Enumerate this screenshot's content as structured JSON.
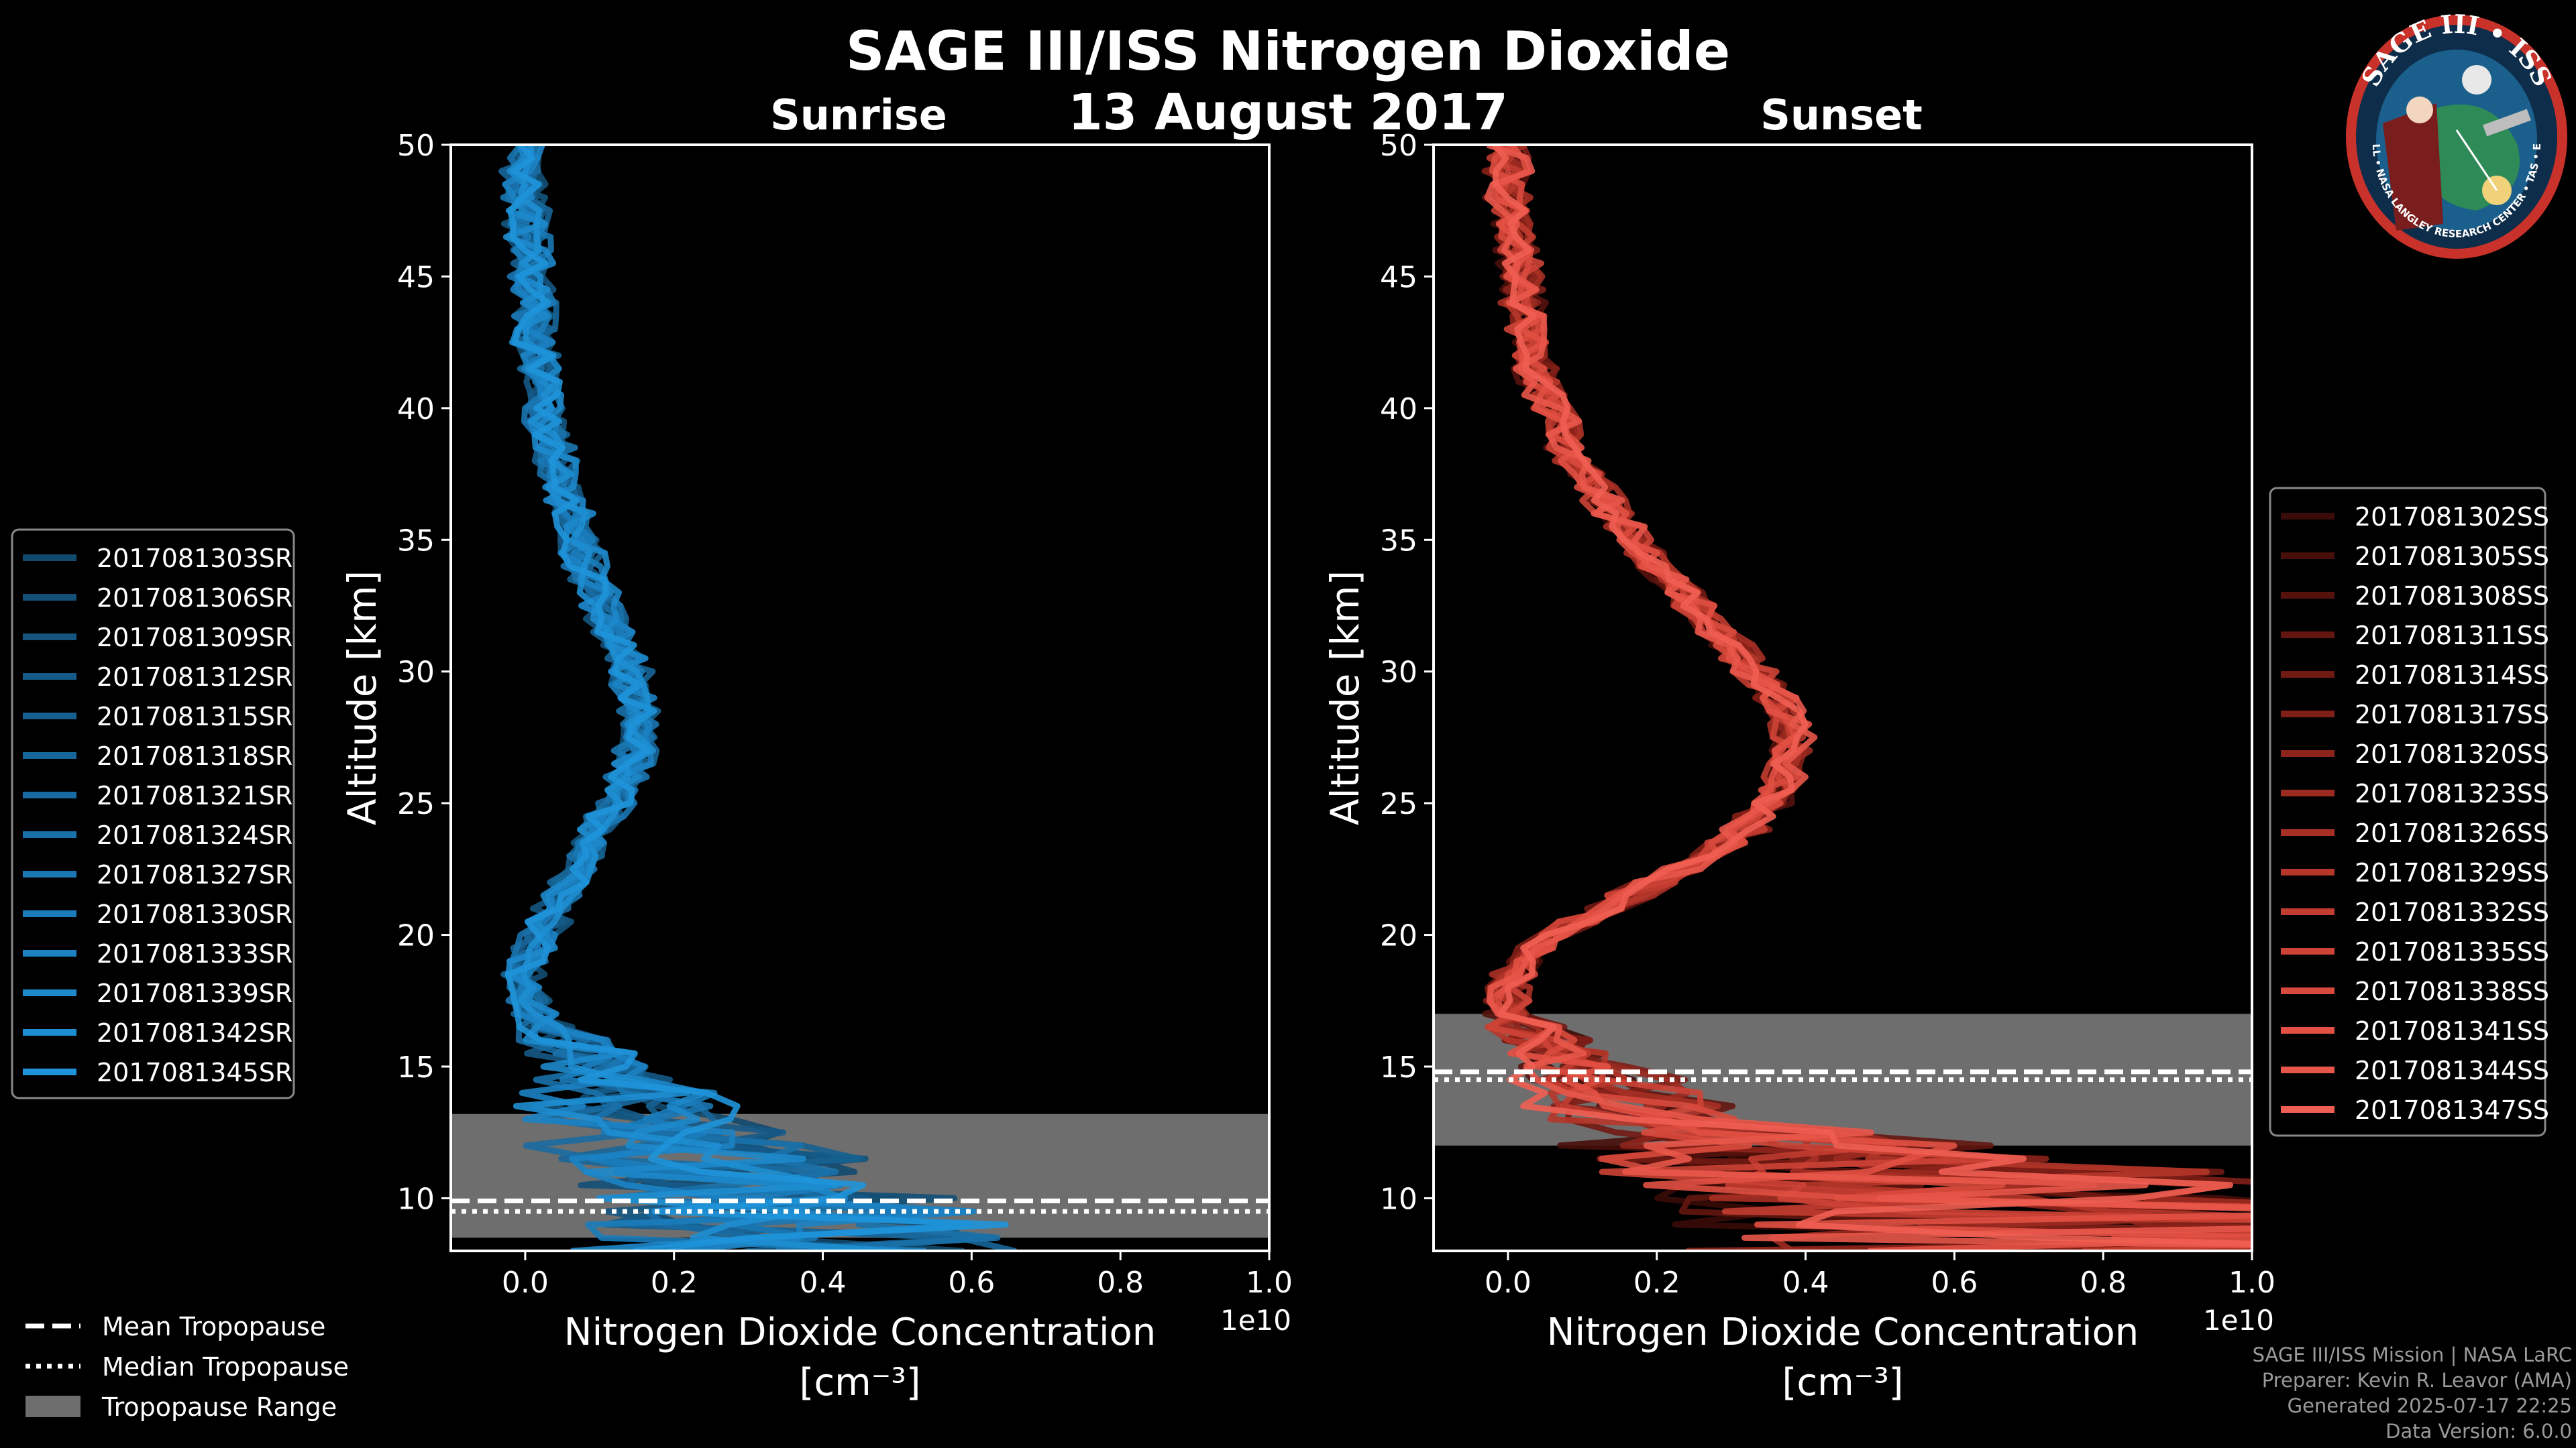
{
  "header": {
    "title": "SAGE III/ISS Nitrogen Dioxide",
    "date": "13 August 2017"
  },
  "chart_data": [
    {
      "type": "line",
      "panel": "Sunrise",
      "title": "Sunrise",
      "xlabel_line1": "Nitrogen Dioxide Concentration",
      "xlabel_line2": "[cm⁻³]",
      "ylabel": "Altitude [km]",
      "x_offset_label": "1e10",
      "xlim": [
        -0.1,
        1.0
      ],
      "ylim": [
        8,
        50
      ],
      "x_scale": 10000000000.0,
      "x_ticks": [
        0.0,
        0.2,
        0.4,
        0.6,
        0.8,
        1.0
      ],
      "x_tick_labels": [
        "0.0",
        "0.2",
        "0.4",
        "0.6",
        "0.8",
        "1.0"
      ],
      "y_ticks": [
        10,
        15,
        20,
        25,
        30,
        35,
        40,
        45,
        50
      ],
      "legend_position": "left",
      "tropopause": {
        "mean": 9.9,
        "median": 9.5,
        "range": [
          8.5,
          13.2
        ]
      },
      "line_color": "#1f8fd2",
      "series": [
        {
          "name": "2017081303SR",
          "color": "#124a6e"
        },
        {
          "name": "2017081306SR",
          "color": "#134f76"
        },
        {
          "name": "2017081309SR",
          "color": "#14557f"
        },
        {
          "name": "2017081312SR",
          "color": "#155a88"
        },
        {
          "name": "2017081315SR",
          "color": "#166090"
        },
        {
          "name": "2017081318SR",
          "color": "#176699"
        },
        {
          "name": "2017081321SR",
          "color": "#186ba2"
        },
        {
          "name": "2017081324SR",
          "color": "#1971aa"
        },
        {
          "name": "2017081327SR",
          "color": "#1a77b3"
        },
        {
          "name": "2017081330SR",
          "color": "#1b7cbb"
        },
        {
          "name": "2017081333SR",
          "color": "#1c82c3"
        },
        {
          "name": "2017081339SR",
          "color": "#1d88cb"
        },
        {
          "name": "2017081342SR",
          "color": "#1e8ed2"
        },
        {
          "name": "2017081345SR",
          "color": "#1f93d9"
        }
      ],
      "profile": {
        "altitude": [
          50,
          48,
          46,
          44,
          42,
          40,
          38,
          36,
          34,
          32,
          30,
          29,
          28,
          27,
          26,
          25,
          24,
          23,
          22,
          21,
          20,
          19,
          18,
          17,
          16,
          15,
          14,
          13,
          12,
          11,
          10,
          9,
          8.5
        ],
        "no2": [
          0.0,
          0.0,
          0.005,
          0.01,
          0.015,
          0.025,
          0.04,
          0.06,
          0.08,
          0.11,
          0.14,
          0.15,
          0.155,
          0.15,
          0.14,
          0.12,
          0.1,
          0.08,
          0.06,
          0.04,
          0.02,
          0.0,
          0.0,
          0.01,
          0.05,
          0.1,
          0.15,
          0.2,
          0.25,
          0.3,
          0.35,
          0.4,
          0.45
        ]
      }
    },
    {
      "type": "line",
      "panel": "Sunset",
      "title": "Sunset",
      "xlabel_line1": "Nitrogen Dioxide Concentration",
      "xlabel_line2": "[cm⁻³]",
      "ylabel": "Altitude [km]",
      "x_offset_label": "1e10",
      "xlim": [
        -0.1,
        1.0
      ],
      "ylim": [
        8,
        50
      ],
      "x_scale": 10000000000.0,
      "x_ticks": [
        0.0,
        0.2,
        0.4,
        0.6,
        0.8,
        1.0
      ],
      "x_tick_labels": [
        "0.0",
        "0.2",
        "0.4",
        "0.6",
        "0.8",
        "1.0"
      ],
      "y_ticks": [
        10,
        15,
        20,
        25,
        30,
        35,
        40,
        45,
        50
      ],
      "legend_position": "right",
      "tropopause": {
        "mean": 14.8,
        "median": 14.5,
        "range": [
          12.0,
          17.0
        ]
      },
      "line_color": "#e8554a",
      "series": [
        {
          "name": "2017081302SS",
          "color": "#3a0b08"
        },
        {
          "name": "2017081305SS",
          "color": "#470e0a"
        },
        {
          "name": "2017081308SS",
          "color": "#55120d"
        },
        {
          "name": "2017081311SS",
          "color": "#631610"
        },
        {
          "name": "2017081314SS",
          "color": "#711a13"
        },
        {
          "name": "2017081317SS",
          "color": "#7f1f17"
        },
        {
          "name": "2017081320SS",
          "color": "#8d241b"
        },
        {
          "name": "2017081323SS",
          "color": "#9b2a20"
        },
        {
          "name": "2017081326SS",
          "color": "#a93025"
        },
        {
          "name": "2017081329SS",
          "color": "#b6362a"
        },
        {
          "name": "2017081332SS",
          "color": "#c23c30"
        },
        {
          "name": "2017081335SS",
          "color": "#cd4336"
        },
        {
          "name": "2017081338SS",
          "color": "#d84a3d"
        },
        {
          "name": "2017081341SS",
          "color": "#e15043"
        },
        {
          "name": "2017081344SS",
          "color": "#e8564a"
        },
        {
          "name": "2017081347SS",
          "color": "#ef5e52"
        }
      ],
      "profile": {
        "altitude": [
          50,
          48,
          46,
          44,
          42,
          40,
          38,
          36,
          34,
          32,
          30,
          29,
          28,
          27,
          26,
          25,
          24,
          23,
          22,
          21,
          20,
          19,
          18,
          17,
          16,
          15,
          14,
          13,
          12,
          11,
          10,
          9,
          8.5
        ],
        "no2": [
          0.0,
          0.0,
          0.01,
          0.02,
          0.03,
          0.06,
          0.09,
          0.14,
          0.2,
          0.27,
          0.33,
          0.36,
          0.38,
          0.38,
          0.37,
          0.35,
          0.32,
          0.27,
          0.2,
          0.13,
          0.06,
          0.02,
          0.0,
          0.0,
          0.05,
          0.1,
          0.15,
          0.2,
          0.4,
          0.6,
          0.8,
          0.9,
          1.0
        ]
      }
    }
  ],
  "tropopause_legend": {
    "mean_label": "Mean Tropopause",
    "median_label": "Median Tropopause",
    "range_label": "Tropopause Range",
    "range_color": "#6e6e6e"
  },
  "logo": {
    "text_top": "SAGE III • ISS",
    "text_bottom": "BALL • NASA LANGLEY RESEARCH CENTER • TAS • ESA",
    "ring_color": "#c8322a",
    "disk_color": "#1b5f8c"
  },
  "credits": {
    "line1": "SAGE III/ISS Mission | NASA LaRC",
    "line2": "Preparer: Kevin R. Leavor (AMA)",
    "line3": "Generated 2025-07-17 22:25",
    "line4": "Data Version: 6.0.0"
  }
}
